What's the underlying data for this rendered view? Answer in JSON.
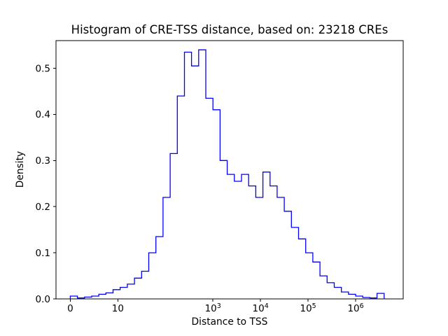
{
  "chart_data": {
    "type": "bar",
    "histtype": "step",
    "title": "Histogram of CRE-TSS distance, based on: 23218 CREs",
    "xlabel": "Distance to TSS",
    "ylabel": "Density",
    "n_cres": 23218,
    "x_scale": "symlog",
    "line_color": "#0000ff",
    "xlim_log10": [
      -0.3,
      7.0
    ],
    "ylim": [
      0,
      0.56
    ],
    "bin_edges_log10": [
      0.0,
      0.15,
      0.3,
      0.45,
      0.6,
      0.75,
      0.9,
      1.05,
      1.2,
      1.35,
      1.5,
      1.65,
      1.8,
      1.95,
      2.1,
      2.25,
      2.4,
      2.55,
      2.7,
      2.85,
      3.0,
      3.15,
      3.3,
      3.45,
      3.6,
      3.75,
      3.9,
      4.05,
      4.2,
      4.35,
      4.5,
      4.65,
      4.8,
      4.95,
      5.1,
      5.25,
      5.4,
      5.55,
      5.7,
      5.85,
      6.0,
      6.15,
      6.3,
      6.45,
      6.6
    ],
    "densities": [
      0.006,
      0.002,
      0.004,
      0.006,
      0.01,
      0.013,
      0.02,
      0.025,
      0.032,
      0.045,
      0.06,
      0.1,
      0.135,
      0.22,
      0.315,
      0.44,
      0.535,
      0.505,
      0.54,
      0.435,
      0.41,
      0.3,
      0.27,
      0.255,
      0.27,
      0.245,
      0.22,
      0.275,
      0.245,
      0.22,
      0.19,
      0.155,
      0.13,
      0.1,
      0.08,
      0.05,
      0.035,
      0.025,
      0.015,
      0.01,
      0.006,
      0.003,
      0.002,
      0.012
    ],
    "x_ticks": [
      {
        "value": 0,
        "pos": 0,
        "label": "0"
      },
      {
        "value": 10,
        "pos": 1,
        "label": "10"
      },
      {
        "value": 1000,
        "pos": 3,
        "label": "10^3"
      },
      {
        "value": 10000,
        "pos": 4,
        "label": "10^4"
      },
      {
        "value": 100000,
        "pos": 5,
        "label": "10^5"
      },
      {
        "value": 1000000,
        "pos": 6,
        "label": "10^6"
      }
    ],
    "y_ticks": [
      {
        "value": 0.0,
        "label": "0.0"
      },
      {
        "value": 0.1,
        "label": "0.1"
      },
      {
        "value": 0.2,
        "label": "0.2"
      },
      {
        "value": 0.3,
        "label": "0.3"
      },
      {
        "value": 0.4,
        "label": "0.4"
      },
      {
        "value": 0.5,
        "label": "0.5"
      }
    ],
    "legend": null,
    "grid": false
  }
}
